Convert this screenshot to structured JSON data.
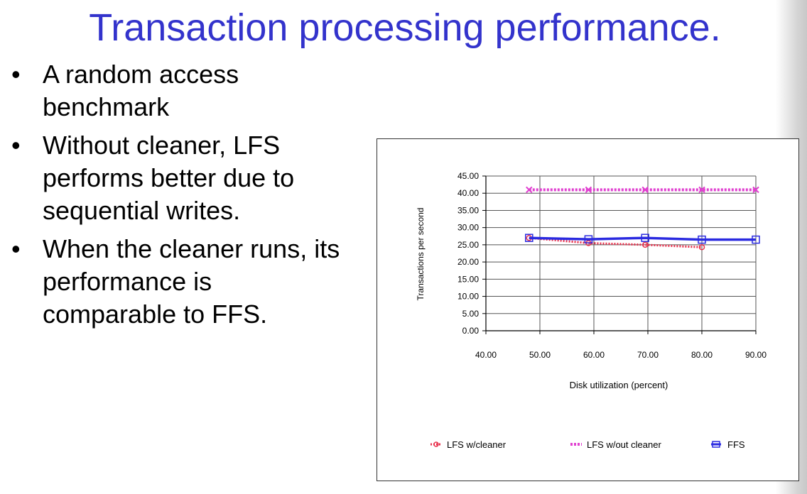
{
  "slide": {
    "title": "Transaction processing performance.",
    "bullets": [
      {
        "text": "A random access benchmark"
      },
      {
        "text": "Without cleaner, LFS performs better due to sequential writes."
      },
      {
        "text": "When the cleaner runs, its performance is comparable to FFS."
      }
    ]
  },
  "chart_data": {
    "type": "line",
    "title": "",
    "xlabel": "Disk utilization (percent)",
    "ylabel": "Transactions per second",
    "xlim": [
      40,
      90
    ],
    "ylim": [
      0,
      45
    ],
    "x_ticks": [
      "40.00",
      "50.00",
      "60.00",
      "70.00",
      "80.00",
      "90.00"
    ],
    "y_ticks": [
      "0.00",
      "5.00",
      "10.00",
      "15.00",
      "20.00",
      "25.00",
      "30.00",
      "35.00",
      "40.00",
      "45.00"
    ],
    "grid": true,
    "legend_position": "bottom",
    "series": [
      {
        "name": "LFS w/cleaner",
        "color": "#e8304c",
        "points": [
          [
            48,
            27
          ],
          [
            59,
            25.5
          ],
          [
            69.5,
            25
          ],
          [
            80,
            24.3
          ]
        ]
      },
      {
        "name": "LFS w/out cleaner",
        "color": "#e040d0",
        "points": [
          [
            48,
            41
          ],
          [
            59,
            41
          ],
          [
            69.5,
            41
          ],
          [
            80,
            41
          ],
          [
            90,
            41
          ]
        ]
      },
      {
        "name": "FFS",
        "color": "#2a2ae0",
        "points": [
          [
            48,
            27
          ],
          [
            59,
            26.6
          ],
          [
            69.5,
            27
          ],
          [
            80,
            26.5
          ],
          [
            90,
            26.5
          ]
        ]
      }
    ]
  }
}
